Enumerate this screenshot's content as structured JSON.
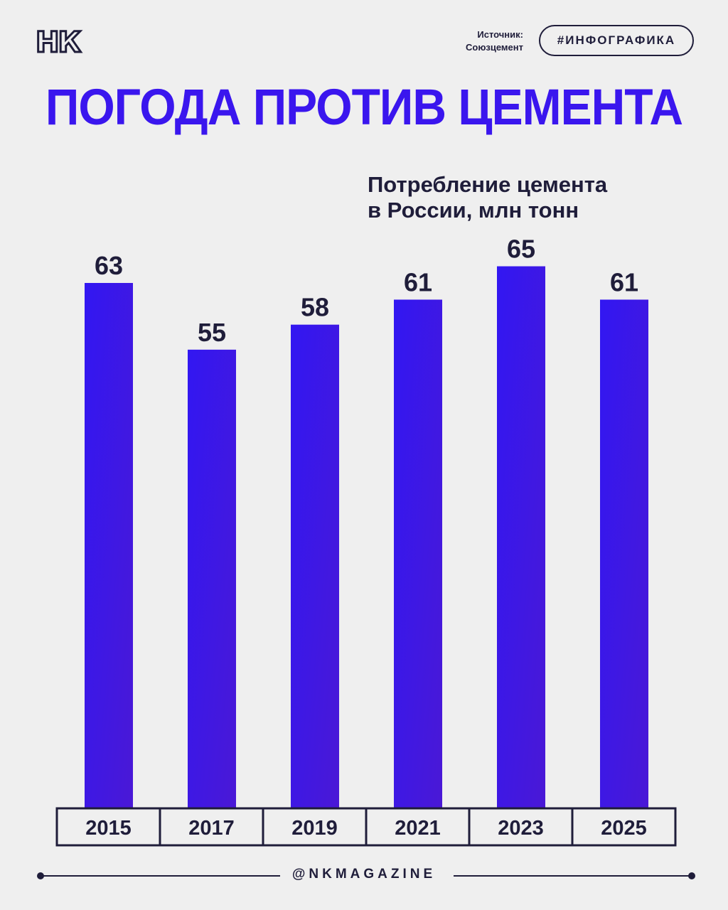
{
  "header": {
    "logo": "НК",
    "source_label": "Источник:",
    "source_name": "Союзцемент",
    "tag": "#ИНФОГРАФИКА"
  },
  "title": "ПОГОДА ПРОТИВ ЦЕМЕНТА",
  "subtitle_line1": "Потребление цемента",
  "subtitle_line2": "в России, млн тонн",
  "footer": {
    "handle": "@NKMAGAZINE"
  },
  "colors": {
    "accent": "#3a16ee",
    "bar_top": "#3217f2",
    "bar_bottom": "#4a18d6",
    "ink": "#1f1d3a",
    "background": "#efefef"
  },
  "chart_data": {
    "type": "bar",
    "categories": [
      "2015",
      "2017",
      "2019",
      "2021",
      "2023",
      "2025"
    ],
    "values": [
      63,
      55,
      58,
      61,
      65,
      61
    ],
    "title": "ПОГОДА ПРОТИВ ЦЕМЕНТА",
    "ylabel": "Потребление цемента в России, млн тонн",
    "xlabel": "",
    "grid": false,
    "data_labels": true
  }
}
